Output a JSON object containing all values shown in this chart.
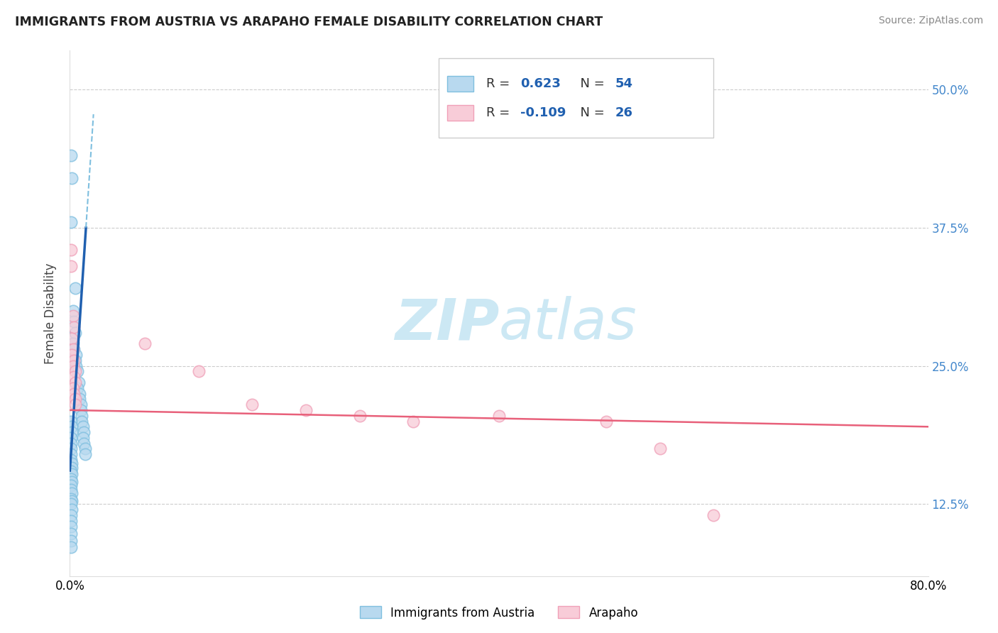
{
  "title": "IMMIGRANTS FROM AUSTRIA VS ARAPAHO FEMALE DISABILITY CORRELATION CHART",
  "source": "Source: ZipAtlas.com",
  "ylabel": "Female Disability",
  "blue_color": "#7fbfdf",
  "blue_fill": "#b8d9ef",
  "pink_color": "#f0a0b8",
  "pink_fill": "#f8ccd8",
  "line_blue": "#2060b0",
  "line_pink": "#e8607a",
  "blue_scatter": [
    [
      0.001,
      0.44
    ],
    [
      0.002,
      0.42
    ],
    [
      0.001,
      0.38
    ],
    [
      0.005,
      0.32
    ],
    [
      0.003,
      0.3
    ],
    [
      0.004,
      0.29
    ],
    [
      0.005,
      0.28
    ],
    [
      0.003,
      0.27
    ],
    [
      0.004,
      0.265
    ],
    [
      0.006,
      0.26
    ],
    [
      0.005,
      0.255
    ],
    [
      0.006,
      0.25
    ],
    [
      0.007,
      0.245
    ],
    [
      0.008,
      0.235
    ],
    [
      0.007,
      0.23
    ],
    [
      0.009,
      0.225
    ],
    [
      0.009,
      0.22
    ],
    [
      0.01,
      0.215
    ],
    [
      0.01,
      0.21
    ],
    [
      0.011,
      0.205
    ],
    [
      0.011,
      0.2
    ],
    [
      0.012,
      0.195
    ],
    [
      0.013,
      0.19
    ],
    [
      0.012,
      0.185
    ],
    [
      0.013,
      0.18
    ],
    [
      0.014,
      0.175
    ],
    [
      0.014,
      0.17
    ],
    [
      0.001,
      0.2
    ],
    [
      0.002,
      0.195
    ],
    [
      0.002,
      0.19
    ],
    [
      0.001,
      0.185
    ],
    [
      0.001,
      0.18
    ],
    [
      0.001,
      0.175
    ],
    [
      0.001,
      0.17
    ],
    [
      0.001,
      0.165
    ],
    [
      0.002,
      0.162
    ],
    [
      0.002,
      0.158
    ],
    [
      0.001,
      0.155
    ],
    [
      0.002,
      0.152
    ],
    [
      0.001,
      0.148
    ],
    [
      0.002,
      0.145
    ],
    [
      0.001,
      0.142
    ],
    [
      0.001,
      0.138
    ],
    [
      0.002,
      0.135
    ],
    [
      0.001,
      0.13
    ],
    [
      0.002,
      0.128
    ],
    [
      0.001,
      0.125
    ],
    [
      0.002,
      0.12
    ],
    [
      0.001,
      0.115
    ],
    [
      0.001,
      0.11
    ],
    [
      0.001,
      0.105
    ],
    [
      0.001,
      0.098
    ],
    [
      0.001,
      0.092
    ],
    [
      0.001,
      0.086
    ]
  ],
  "pink_scatter": [
    [
      0.001,
      0.355
    ],
    [
      0.001,
      0.34
    ],
    [
      0.003,
      0.295
    ],
    [
      0.004,
      0.285
    ],
    [
      0.002,
      0.275
    ],
    [
      0.003,
      0.265
    ],
    [
      0.002,
      0.26
    ],
    [
      0.004,
      0.255
    ],
    [
      0.003,
      0.25
    ],
    [
      0.005,
      0.245
    ],
    [
      0.004,
      0.24
    ],
    [
      0.005,
      0.235
    ],
    [
      0.003,
      0.23
    ],
    [
      0.004,
      0.225
    ],
    [
      0.005,
      0.22
    ],
    [
      0.005,
      0.215
    ],
    [
      0.07,
      0.27
    ],
    [
      0.12,
      0.245
    ],
    [
      0.17,
      0.215
    ],
    [
      0.22,
      0.21
    ],
    [
      0.27,
      0.205
    ],
    [
      0.32,
      0.2
    ],
    [
      0.4,
      0.205
    ],
    [
      0.5,
      0.2
    ],
    [
      0.55,
      0.175
    ],
    [
      0.6,
      0.115
    ]
  ],
  "xlim": [
    0.0,
    0.8
  ],
  "ylim": [
    0.06,
    0.535
  ],
  "ytick_vals": [
    0.125,
    0.25,
    0.375,
    0.5
  ],
  "ytick_labels": [
    "12.5%",
    "25.0%",
    "37.5%",
    "50.0%"
  ],
  "xtick_vals": [
    0.0,
    0.2,
    0.4,
    0.6,
    0.8
  ],
  "xtick_labels": [
    "0.0%",
    "",
    "",
    "",
    "80.0%"
  ],
  "grid_color": "#cccccc",
  "watermark_color": "#cce8f4"
}
